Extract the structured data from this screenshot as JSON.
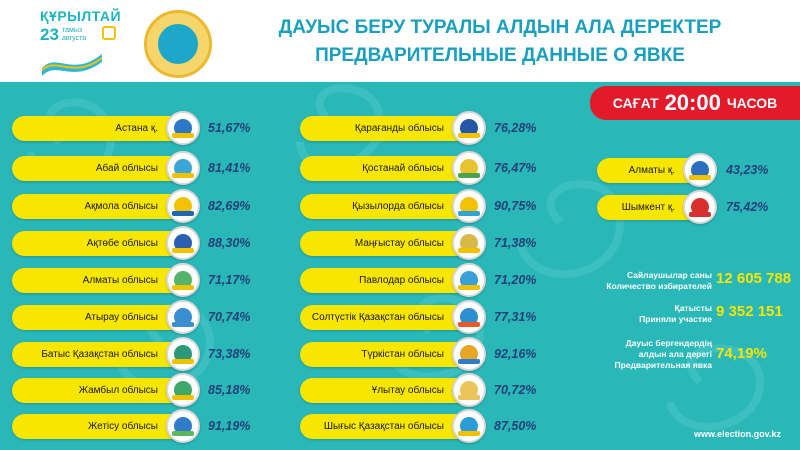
{
  "brand": {
    "title": "ҚҰРЫЛТАЙ",
    "number": "23",
    "date_line": "тамыз августа"
  },
  "header": {
    "title_kz": "ДАУЫС БЕРУ ТУРАЛЫ АЛДЫН АЛА ДЕРЕКТЕР",
    "title_ru": "ПРЕДВАРИТЕЛЬНЫЕ ДАННЫЕ О ЯВКЕ"
  },
  "time": {
    "word_kz": "САҒАТ",
    "time": "20:00",
    "word_ru": "ЧАСОВ"
  },
  "regions_left": [
    {
      "name": "Астана қ.",
      "percent": "51,67%"
    },
    {
      "name": "Абай облысы",
      "percent": "81,41%"
    },
    {
      "name": "Ақмола облысы",
      "percent": "82,69%"
    },
    {
      "name": "Ақтөбе облысы",
      "percent": "88,30%"
    },
    {
      "name": "Алматы облысы",
      "percent": "71,17%"
    },
    {
      "name": "Атырау облысы",
      "percent": "70,74%"
    },
    {
      "name": "Батыс Қазақстан облысы",
      "percent": "73,38%"
    },
    {
      "name": "Жамбыл облысы",
      "percent": "85,18%"
    },
    {
      "name": "Жетісу облысы",
      "percent": "91,19%"
    }
  ],
  "regions_middle": [
    {
      "name": "Қарағанды облысы",
      "percent": "76,28%"
    },
    {
      "name": "Қостанай облысы",
      "percent": "76,47%"
    },
    {
      "name": "Қызылорда облысы",
      "percent": "90,75%"
    },
    {
      "name": "Маңғыстау облысы",
      "percent": "71,38%"
    },
    {
      "name": "Павлодар облысы",
      "percent": "71,20%"
    },
    {
      "name": "Солтүстік Қазақстан облысы",
      "percent": "77,31%"
    },
    {
      "name": "Түркістан облысы",
      "percent": "92,16%"
    },
    {
      "name": "Ұлытау облысы",
      "percent": "70,72%"
    },
    {
      "name": "Шығыс Қазақстан облысы",
      "percent": "87,50%"
    }
  ],
  "regions_right": [
    {
      "name": "Алматы қ.",
      "percent": "43,23%"
    },
    {
      "name": "Шымкент қ.",
      "percent": "75,42%"
    }
  ],
  "stats": {
    "voters_label_kz": "Сайлаушылар саны",
    "voters_label_ru": "Количество избирателей",
    "voters_value": "12 605 788",
    "participated_label_kz": "Қатысты",
    "participated_label_ru": "Приняли участие",
    "participated_value": "9 352 151",
    "turnout_label_line1": "Дауыс бергендердің",
    "turnout_label_line2": "алдын ала дерегі",
    "turnout_label_line3": "Предварительная явка",
    "turnout_value": "74,19%"
  },
  "footer": {
    "website": "www.election.gov.kz"
  },
  "colors": {
    "teal": "#29b7b8",
    "yellow": "#f7e600",
    "red": "#e21a2a",
    "header_text": "#1a9fbf",
    "percent_text": "#24407a"
  }
}
